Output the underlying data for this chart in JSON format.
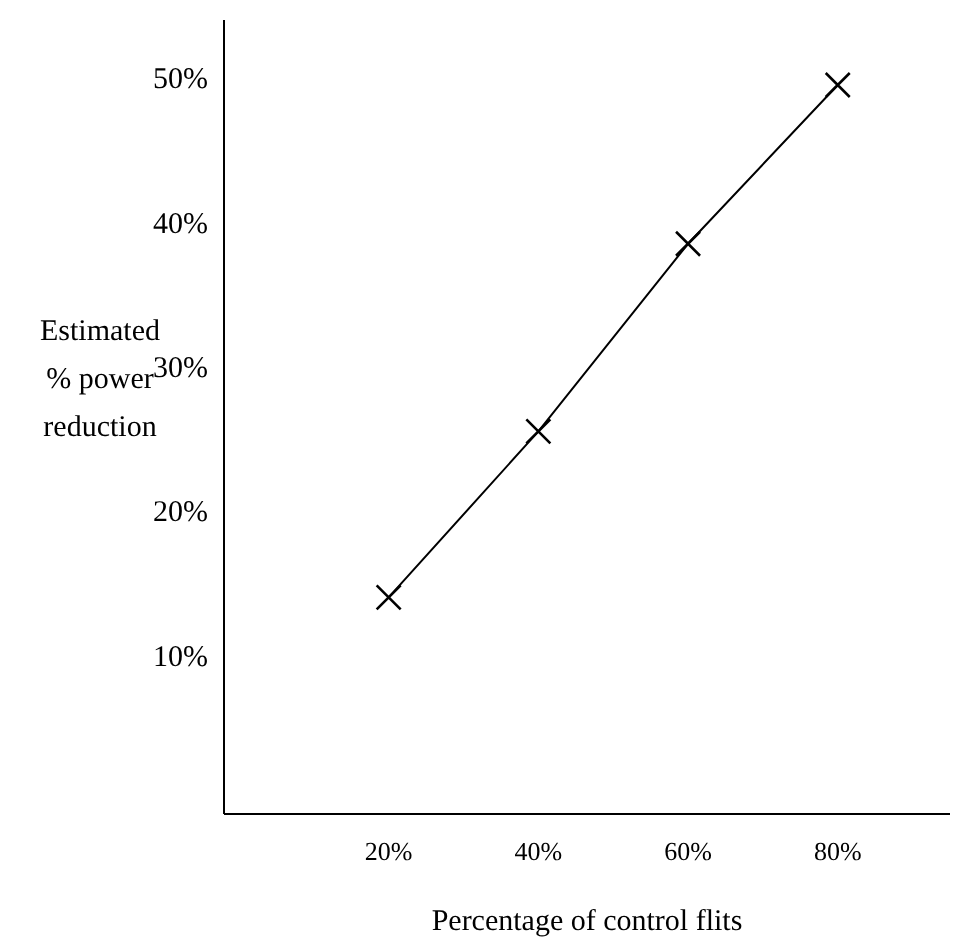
{
  "chart_data": {
    "type": "line",
    "xlabel": "Percentage of control flits",
    "ylabel": "Estimated\n% power\nreduction",
    "x": [
      20,
      40,
      60,
      80
    ],
    "series": [
      {
        "color": "#000000",
        "values": [
          14,
          25.5,
          38.5,
          49.5
        ]
      }
    ],
    "xlim": [
      -2,
      95
    ],
    "xticks": [
      {
        "value": 20,
        "label": "20%"
      },
      {
        "value": 40,
        "label": "40%"
      },
      {
        "value": 60,
        "label": "60%"
      },
      {
        "value": 80,
        "label": "80%"
      }
    ],
    "ylim": [
      -1,
      54
    ],
    "yticks": [
      {
        "value": 10,
        "label": "10%"
      },
      {
        "value": 20,
        "label": "20%"
      },
      {
        "value": 30,
        "label": "30%"
      },
      {
        "value": 40,
        "label": "40%"
      },
      {
        "value": 50,
        "label": "50%"
      }
    ],
    "grid": false,
    "marker": "cross",
    "line_style": "solid"
  }
}
